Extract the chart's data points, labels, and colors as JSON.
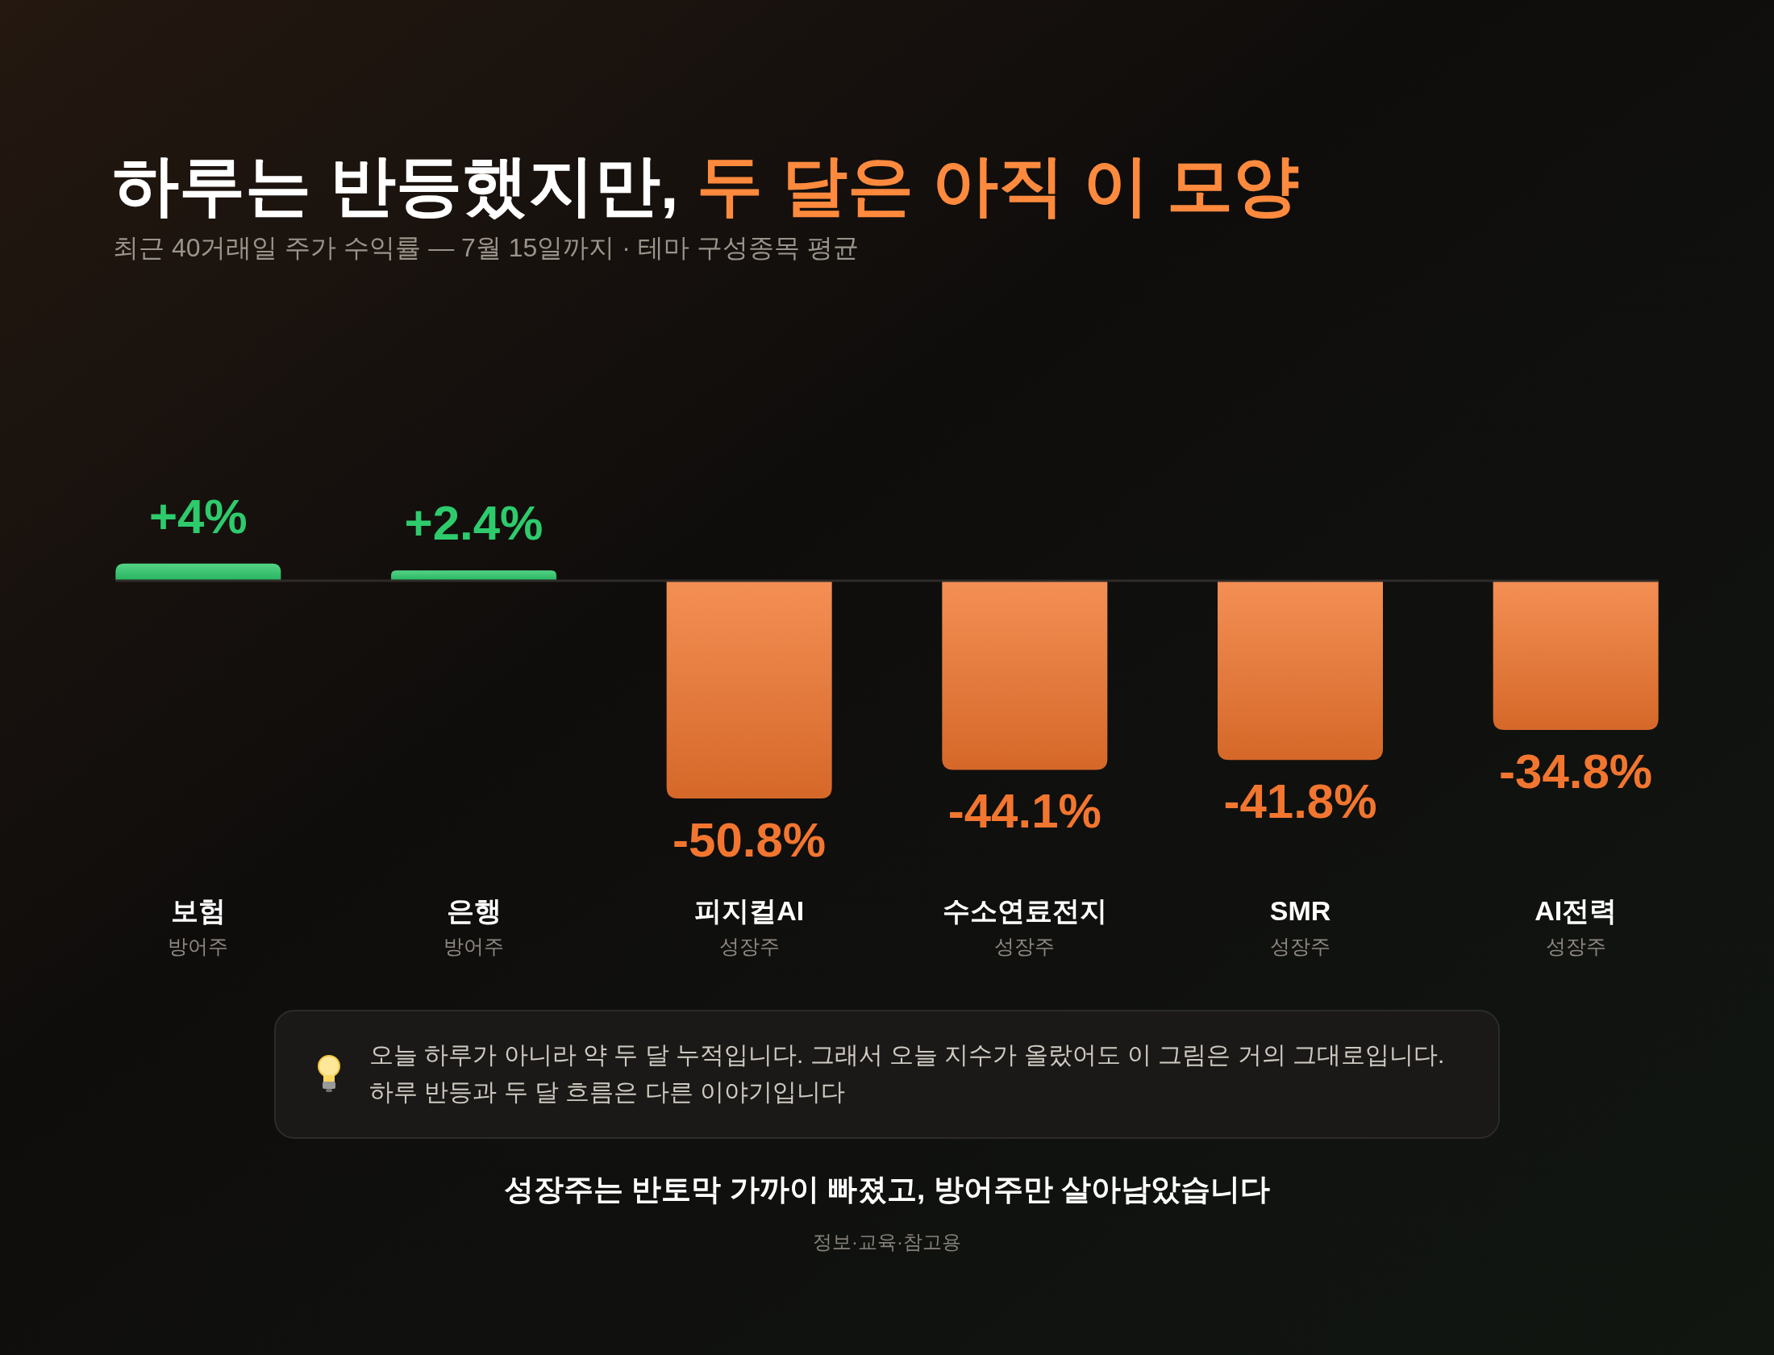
{
  "chart_data": {
    "type": "bar",
    "title": "하루는 반등했지만, 두 달은 아직 이 모양",
    "subtitle": "최근 40거래일 주가 수익률 — 7월 15일까지 · 테마 구성종목 평균",
    "categories": [
      "보험\n방어주",
      "은행\n방어주",
      "피지컬AI\n성장주",
      "수소연료전지\n성장주",
      "SMR\n성장주",
      "AI전력\n성장주"
    ],
    "values": [
      4,
      2.4,
      -50.8,
      -44.1,
      -41.8,
      -34.8
    ],
    "colors": [
      "#2dcb6c",
      "#2dcb6c",
      "#f2762f",
      "#f2762f",
      "#f2762f",
      "#f2762f"
    ],
    "value_labels": [
      "+4%",
      "+2.4%",
      "-50.8%",
      "-44.1%",
      "-41.8%",
      "-34.8%"
    ],
    "annotations": [
      "오늘 하루가 아니라 약 두 달 누적입니다. 그래서 오늘 지수가 올랐어도 이 그림은 거의 그대로입니다. 하루 반등과 두 달 흐름은 다른 이야기입니다",
      "성장주는 반토막 가까이 빠졌고, 방어주만 살아남았습니다",
      "정보·교육·참고용"
    ]
  }
}
